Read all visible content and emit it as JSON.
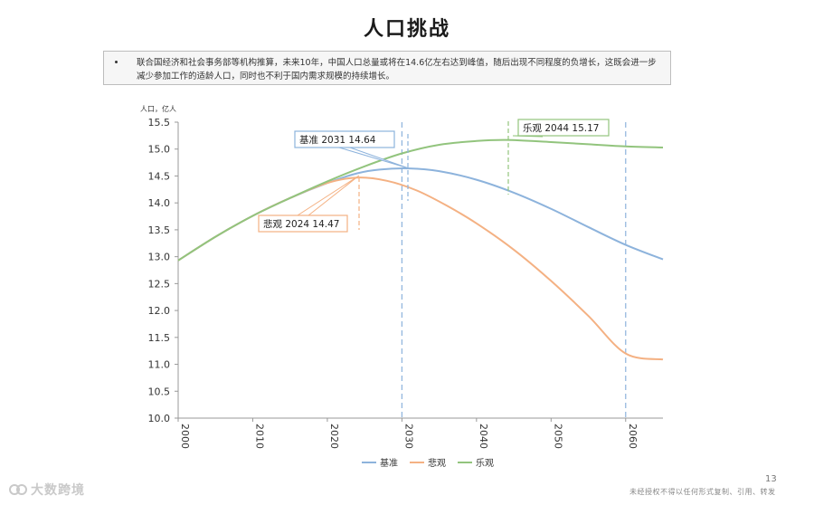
{
  "slide": {
    "title": "人口挑战",
    "bullet": "联合国经济和社会事务部等机构推算，未来10年，中国人口总量或将在14.6亿左右达到峰值，随后出现不同程度的负增长，这既会进一步减少参加工作的适龄人口，同时也不利于国内需求规模的持续增长。",
    "page_number": "13",
    "disclaimer": "未经授权不得以任何形式复制、引用、转发",
    "logo_text": "大数跨境"
  },
  "chart_data": {
    "type": "line",
    "ylabel": "人口，亿人",
    "xlim": [
      2000,
      2065
    ],
    "ylim": [
      10.0,
      15.5
    ],
    "yticks": [
      "10.0",
      "10.5",
      "11.0",
      "11.5",
      "12.0",
      "12.5",
      "13.0",
      "13.5",
      "14.0",
      "14.5",
      "15.0",
      "15.5"
    ],
    "xticks": [
      "2000",
      "2010",
      "2020",
      "2030",
      "2040",
      "2050",
      "2060"
    ],
    "grid": false,
    "legend_position": "bottom",
    "series": [
      {
        "name": "基准",
        "color": "#8db3dc",
        "x": [
          2000,
          2005,
          2010,
          2015,
          2020,
          2024,
          2027,
          2031,
          2035,
          2040,
          2045,
          2050,
          2055,
          2060,
          2065
        ],
        "y": [
          12.93,
          13.37,
          13.76,
          14.09,
          14.37,
          14.55,
          14.62,
          14.64,
          14.59,
          14.43,
          14.19,
          13.89,
          13.55,
          13.22,
          12.95
        ]
      },
      {
        "name": "悲观",
        "color": "#f4b183",
        "x": [
          2000,
          2005,
          2010,
          2015,
          2020,
          2024,
          2028,
          2032,
          2036,
          2040,
          2045,
          2050,
          2055,
          2060,
          2065
        ],
        "y": [
          12.93,
          13.37,
          13.76,
          14.09,
          14.37,
          14.47,
          14.41,
          14.23,
          13.95,
          13.62,
          13.13,
          12.55,
          11.9,
          11.2,
          11.09
        ]
      },
      {
        "name": "乐观",
        "color": "#92c47d",
        "x": [
          2000,
          2005,
          2010,
          2015,
          2020,
          2025,
          2030,
          2035,
          2040,
          2044,
          2050,
          2055,
          2060,
          2065
        ],
        "y": [
          12.93,
          13.37,
          13.76,
          14.09,
          14.4,
          14.68,
          14.92,
          15.08,
          15.15,
          15.17,
          15.13,
          15.09,
          15.05,
          15.03
        ]
      }
    ],
    "annotations": [
      {
        "series": "基准",
        "label": "基准 2031 14.64",
        "x": 2031,
        "y": 14.64,
        "color": "#8db3dc"
      },
      {
        "series": "悲观",
        "label": "悲观 2024 14.47",
        "x": 2024,
        "y": 14.47,
        "color": "#f4b183"
      },
      {
        "series": "乐观",
        "label": "乐观 2044 15.17",
        "x": 2044,
        "y": 15.17,
        "color": "#92c47d"
      }
    ],
    "reference_lines": [
      {
        "x": 2030,
        "color": "#8db3dc"
      },
      {
        "x": 2060,
        "color": "#8db3dc"
      }
    ]
  }
}
